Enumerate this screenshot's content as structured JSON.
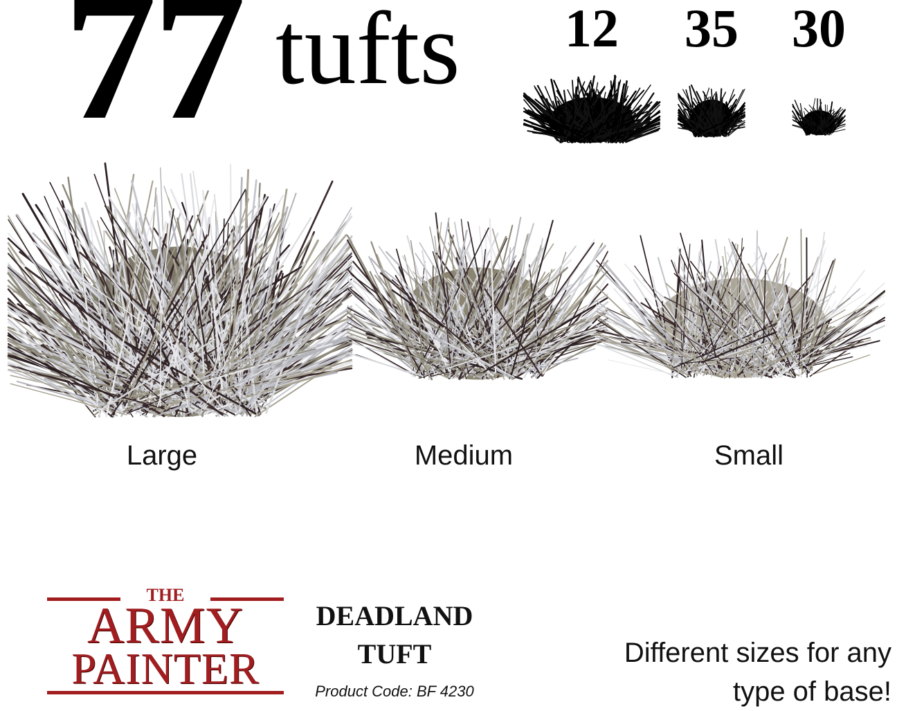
{
  "headline": {
    "count": "77",
    "word": "tufts"
  },
  "size_counts": [
    {
      "size": "Large",
      "count": "12"
    },
    {
      "size": "Medium",
      "count": "35"
    },
    {
      "size": "Small",
      "count": "30"
    }
  ],
  "size_labels": [
    "Large",
    "Medium",
    "Small"
  ],
  "brand": {
    "line1": "THE",
    "line2": "ARMY",
    "line3": "PAINTER",
    "color": "#a11d1f"
  },
  "product": {
    "name_line1": "DEADLAND",
    "name_line2": "TUFT",
    "code": "Product Code: BF 4230"
  },
  "tagline": {
    "line1": "Different sizes for any",
    "line2": "type of base!"
  }
}
